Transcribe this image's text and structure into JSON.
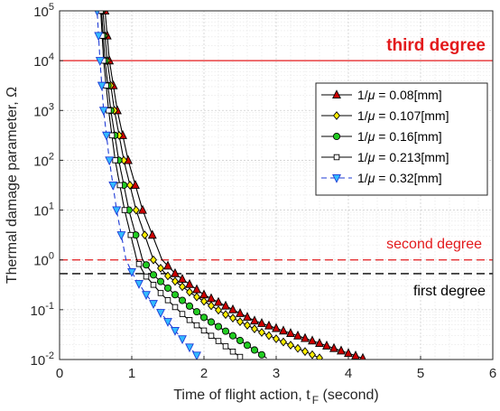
{
  "chart_data": {
    "type": "line",
    "xlabel": "Time of flight action, t",
    "xlabel_subscript": "F",
    "xlabel_suffix": " (second)",
    "ylabel": "Thermal damage parameter, Ω",
    "xlim": [
      0,
      6
    ],
    "ylim": [
      0.01,
      100000
    ],
    "yscale": "log",
    "grid": true,
    "legend_position": "top-right",
    "x_ticks": [
      "0",
      "1",
      "2",
      "3",
      "4",
      "5",
      "6"
    ],
    "y_ticks": [
      {
        "base": "10",
        "exp": "-2"
      },
      {
        "base": "10",
        "exp": "-1"
      },
      {
        "base": "10",
        "exp": "0"
      },
      {
        "base": "10",
        "exp": "1"
      },
      {
        "base": "10",
        "exp": "2"
      },
      {
        "base": "10",
        "exp": "3"
      },
      {
        "base": "10",
        "exp": "4"
      },
      {
        "base": "10",
        "exp": "5"
      }
    ],
    "thresholds": [
      {
        "label": "third degree",
        "value": 10000,
        "color": "#e31a1c",
        "style": "solid",
        "bold": true
      },
      {
        "label": "second degree",
        "value": 1,
        "color": "#e31a1c",
        "style": "dashed",
        "bold": false
      },
      {
        "label": "first degree",
        "value": 0.53,
        "color": "#000000",
        "style": "dashed",
        "bold": false
      }
    ],
    "series": [
      {
        "name": "1/μ = 0.08[mm]",
        "legend_prefix": "1/",
        "legend_mu": "μ",
        "legend_suffix": " = 0.08[mm]",
        "marker": "triangle-up",
        "fill": "#cc0000",
        "stroke": "#000000",
        "line": "solid",
        "anchors": [
          [
            0.63,
            100000
          ],
          [
            0.69,
            10000
          ],
          [
            0.8,
            1000
          ],
          [
            0.95,
            100
          ],
          [
            1.15,
            10
          ],
          [
            1.42,
            1
          ],
          [
            1.62,
            0.5
          ],
          [
            2.0,
            0.2
          ],
          [
            2.7,
            0.06
          ],
          [
            3.3,
            0.03
          ],
          [
            4.25,
            0.01
          ]
        ]
      },
      {
        "name": "1/μ = 0.107[mm]",
        "legend_prefix": "1/",
        "legend_mu": "μ",
        "legend_suffix": " = 0.107[mm]",
        "marker": "diamond",
        "fill": "#ffee00",
        "stroke": "#000000",
        "line": "solid",
        "anchors": [
          [
            0.6,
            100000
          ],
          [
            0.66,
            10000
          ],
          [
            0.76,
            1000
          ],
          [
            0.89,
            100
          ],
          [
            1.06,
            10
          ],
          [
            1.3,
            1
          ],
          [
            1.48,
            0.5
          ],
          [
            1.85,
            0.2
          ],
          [
            2.3,
            0.08
          ],
          [
            2.8,
            0.035
          ],
          [
            3.65,
            0.01
          ]
        ]
      },
      {
        "name": "1/μ = 0.16[mm]",
        "legend_prefix": "1/",
        "legend_mu": "μ",
        "legend_suffix": " = 0.16[mm]",
        "marker": "circle",
        "fill": "#22cc22",
        "stroke": "#000000",
        "line": "solid",
        "anchors": [
          [
            0.58,
            100000
          ],
          [
            0.63,
            10000
          ],
          [
            0.71,
            1000
          ],
          [
            0.82,
            100
          ],
          [
            0.96,
            10
          ],
          [
            1.15,
            1
          ],
          [
            1.3,
            0.5
          ],
          [
            1.6,
            0.2
          ],
          [
            2.0,
            0.07
          ],
          [
            2.4,
            0.03
          ],
          [
            2.9,
            0.01
          ]
        ]
      },
      {
        "name": "1/μ = 0.213[mm]",
        "legend_prefix": "1/",
        "legend_mu": "μ",
        "legend_suffix": " = 0.213[mm]",
        "marker": "square-open",
        "fill": "#ffffff",
        "stroke": "#000000",
        "line": "solid",
        "anchors": [
          [
            0.57,
            100000
          ],
          [
            0.61,
            10000
          ],
          [
            0.68,
            1000
          ],
          [
            0.77,
            100
          ],
          [
            0.9,
            10
          ],
          [
            1.07,
            1
          ],
          [
            1.18,
            0.5
          ],
          [
            1.42,
            0.2
          ],
          [
            1.75,
            0.07
          ],
          [
            2.1,
            0.03
          ],
          [
            2.55,
            0.01
          ]
        ]
      },
      {
        "name": "1/μ = 0.32[mm]",
        "legend_prefix": "1/",
        "legend_mu": "μ",
        "legend_suffix": " = 0.32[mm]",
        "marker": "triangle-down",
        "fill": "#33bbff",
        "stroke": "#1f3bd6",
        "line": "dashed",
        "anchors": [
          [
            0.52,
            100000
          ],
          [
            0.56,
            10000
          ],
          [
            0.61,
            1000
          ],
          [
            0.69,
            100
          ],
          [
            0.79,
            10
          ],
          [
            0.92,
            1
          ],
          [
            1.02,
            0.5
          ],
          [
            1.2,
            0.2
          ],
          [
            1.42,
            0.08
          ],
          [
            1.62,
            0.035
          ],
          [
            1.95,
            0.01
          ]
        ]
      }
    ]
  }
}
